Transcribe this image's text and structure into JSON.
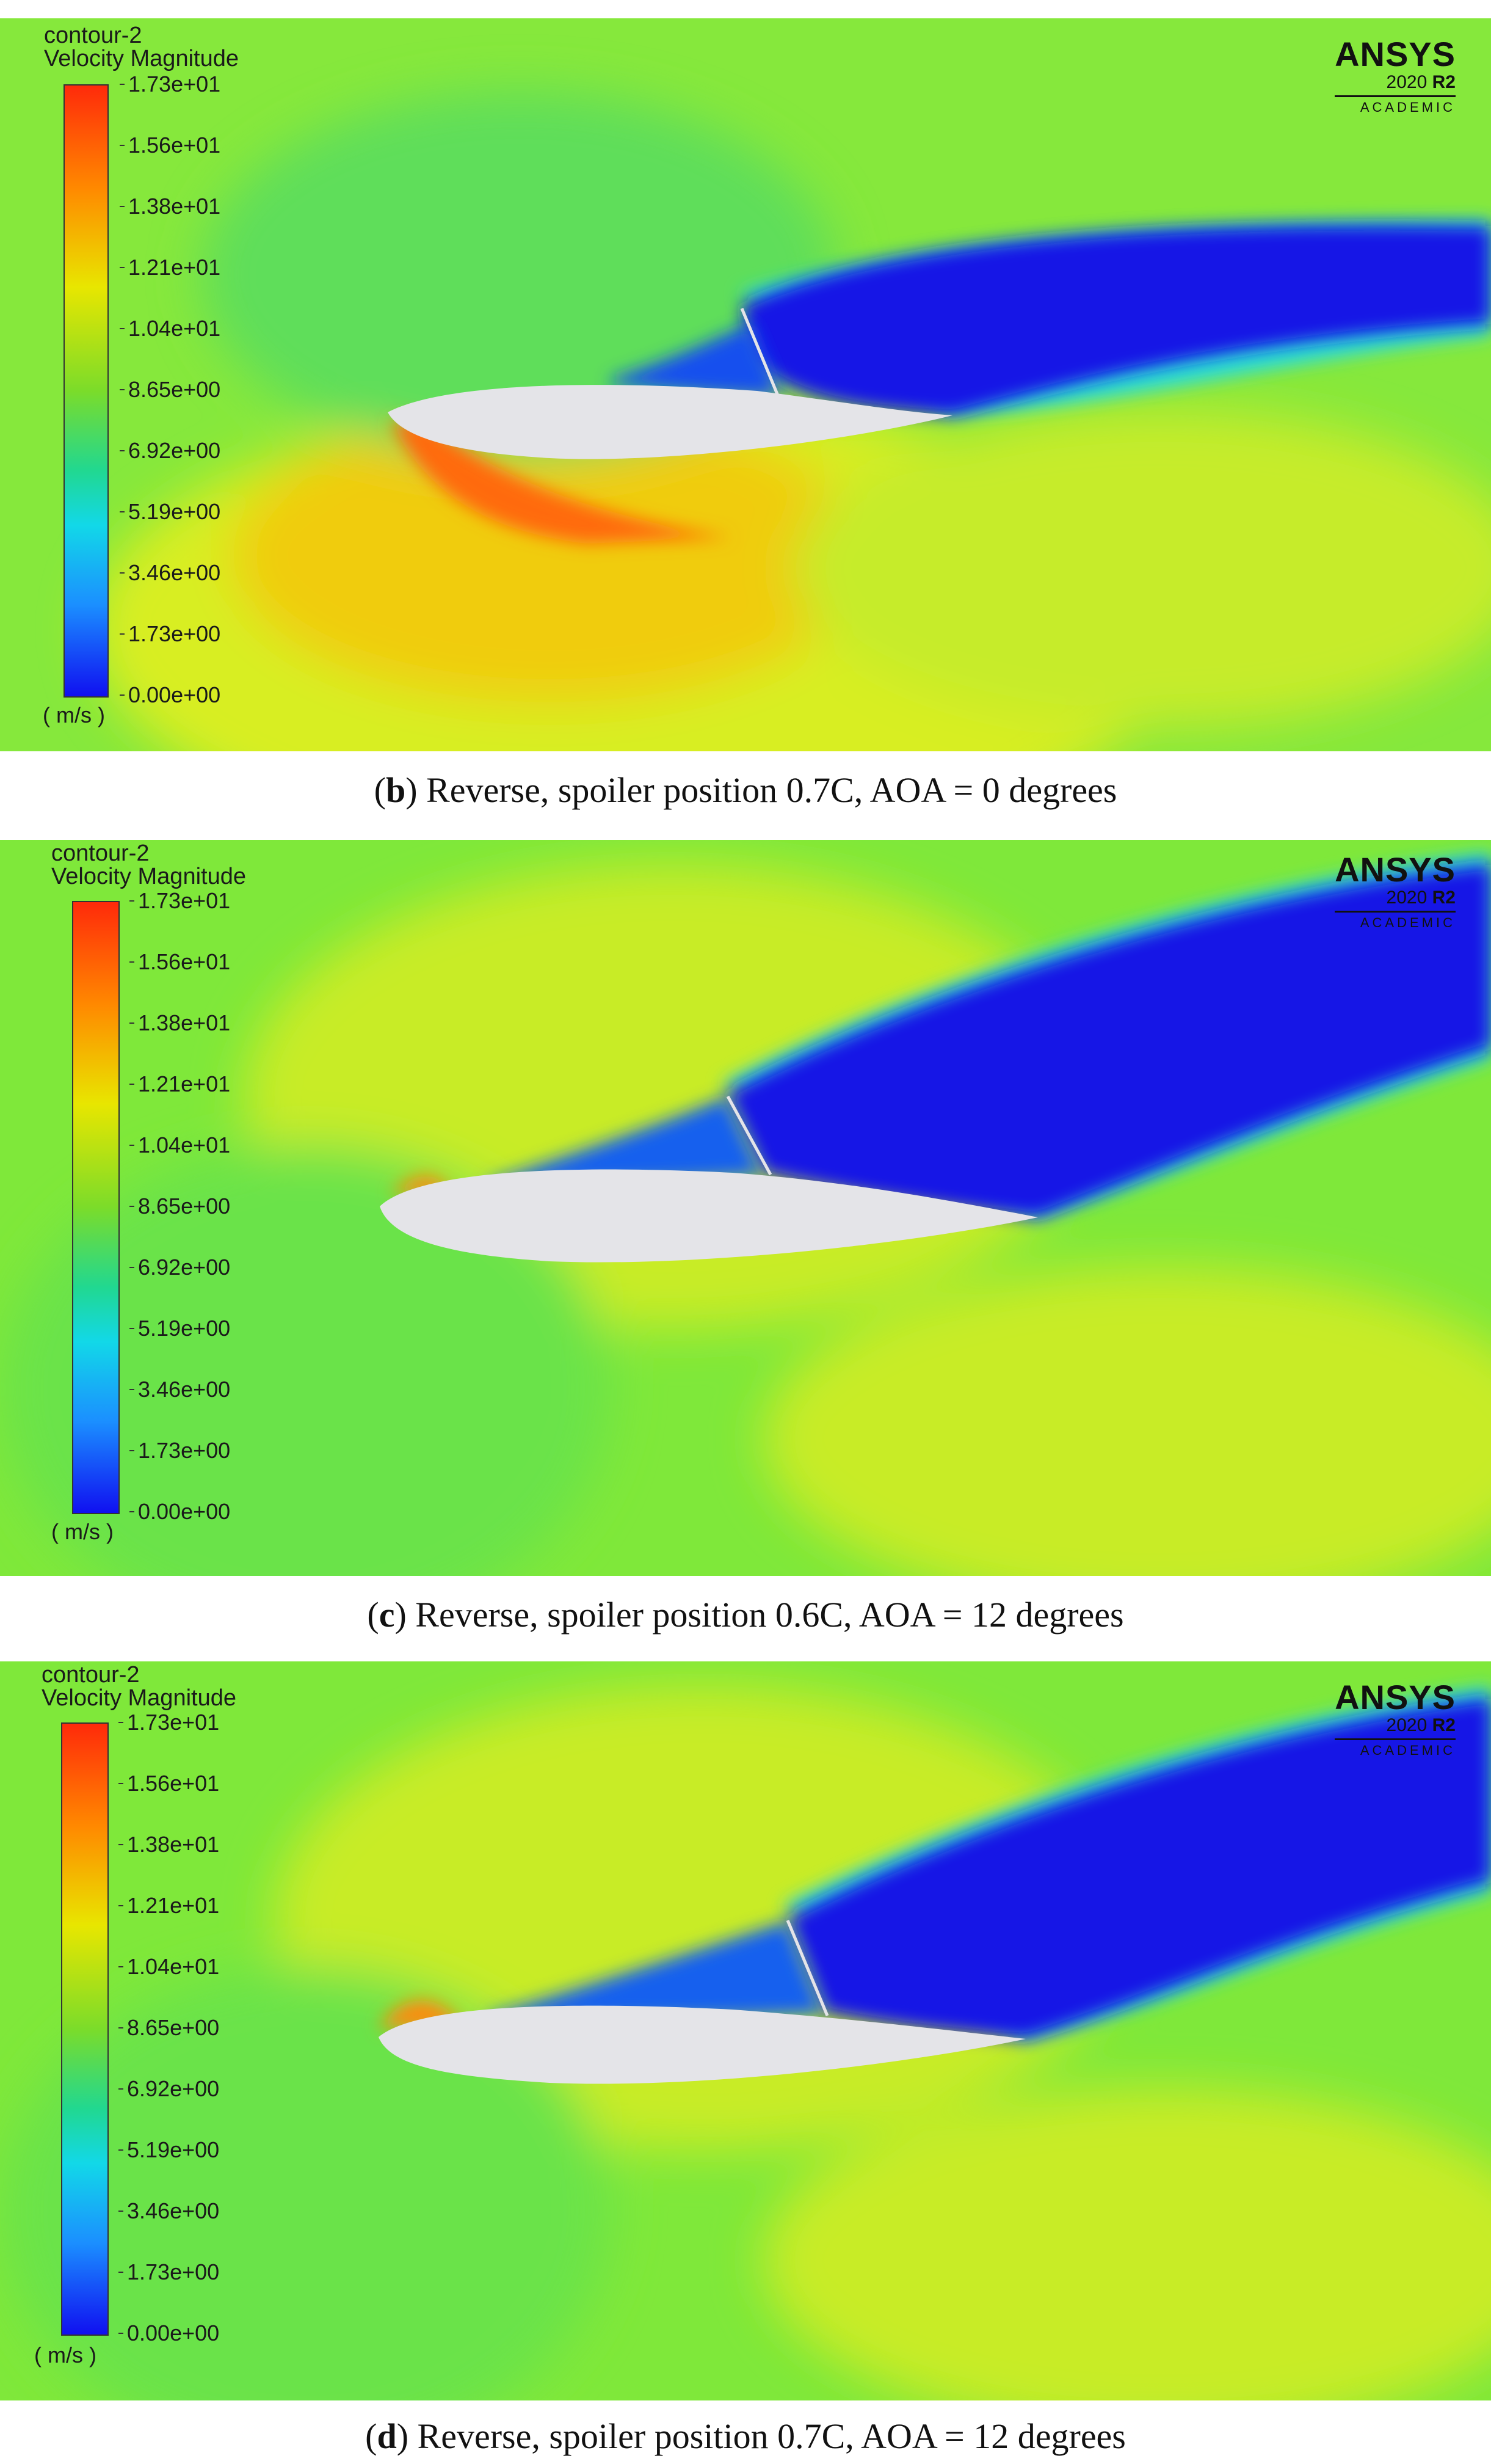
{
  "legend": {
    "contour_name": "contour-2",
    "variable": "Velocity Magnitude",
    "ticks": [
      "1.73e+01",
      "1.56e+01",
      "1.38e+01",
      "1.21e+01",
      "1.04e+01",
      "8.65e+00",
      "6.92e+00",
      "5.19e+00",
      "3.46e+00",
      "1.73e+00",
      "0.00e+00"
    ],
    "units": "( m/s )"
  },
  "logo": {
    "brand": "ANSYS",
    "version": "2020",
    "release": "R2",
    "edition": "ACADEMIC"
  },
  "panels": [
    {
      "letter": "b",
      "caption": ") Reverse, spoiler position 0.7C, AOA = 0 degrees",
      "spoiler_position": "0.7C",
      "aoa_degrees": 0
    },
    {
      "letter": "c",
      "caption": ") Reverse, spoiler position 0.6C, AOA = 12 degrees",
      "spoiler_position": "0.6C",
      "aoa_degrees": 12
    },
    {
      "letter": "d",
      "caption": ") Reverse, spoiler position 0.7C, AOA = 12 degrees",
      "spoiler_position": "0.7C",
      "aoa_degrees": 12
    }
  ],
  "colors": {
    "max": "#ff2a0a",
    "mid": "#7bdc2a",
    "min": "#1010f0",
    "airfoil": "#e4e4e8"
  }
}
